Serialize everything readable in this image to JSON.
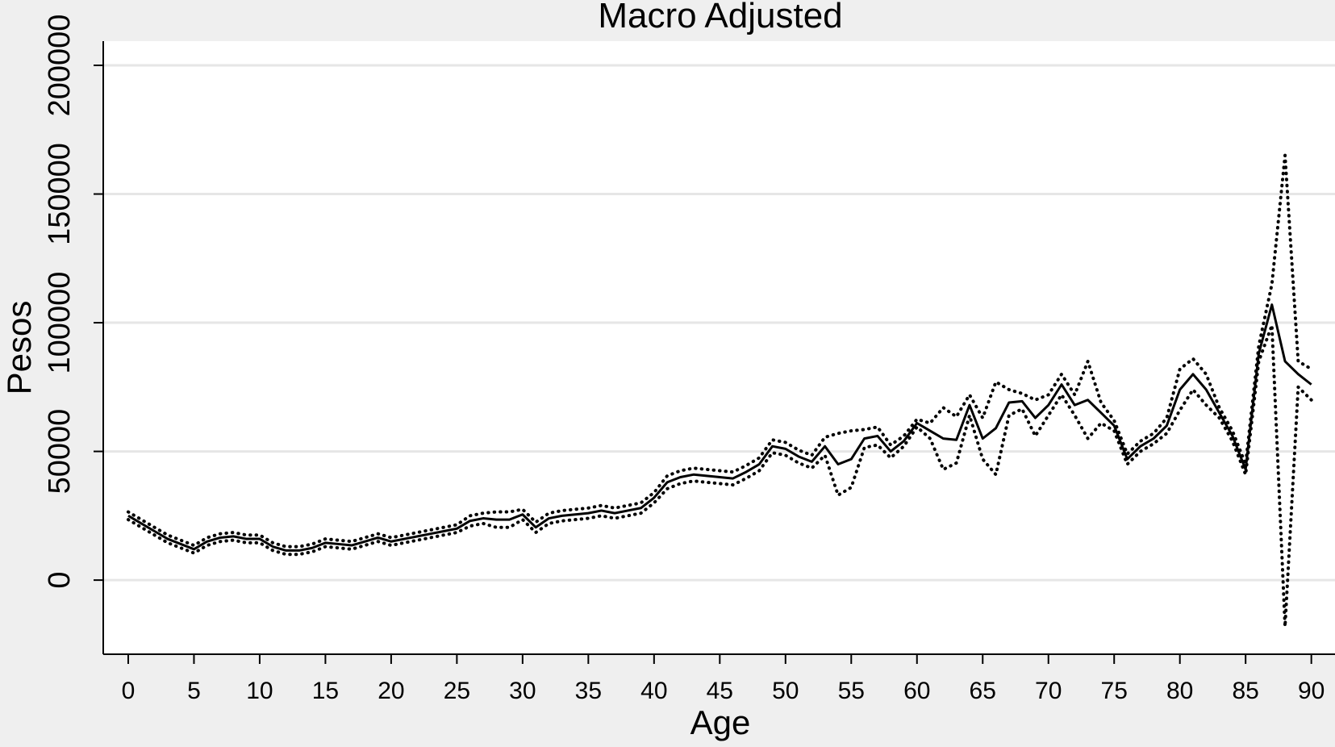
{
  "chart_data": {
    "type": "line",
    "title": "Macro Adjusted",
    "x_label": "Age",
    "y_label": "Pesos",
    "x": [
      0,
      1,
      2,
      3,
      4,
      5,
      6,
      7,
      8,
      9,
      10,
      11,
      12,
      13,
      14,
      15,
      16,
      17,
      18,
      19,
      20,
      21,
      22,
      23,
      24,
      25,
      26,
      27,
      28,
      29,
      30,
      31,
      32,
      33,
      34,
      35,
      36,
      37,
      38,
      39,
      40,
      41,
      42,
      43,
      44,
      45,
      46,
      47,
      48,
      49,
      50,
      51,
      52,
      53,
      54,
      55,
      56,
      57,
      58,
      59,
      60,
      61,
      62,
      63,
      64,
      65,
      66,
      67,
      68,
      69,
      70,
      71,
      72,
      73,
      74,
      75,
      76,
      77,
      78,
      79,
      80,
      81,
      82,
      83,
      84,
      85,
      86,
      87,
      88,
      89,
      90
    ],
    "series": [
      {
        "color": "#000000",
        "style": "solid",
        "values": [
          25000,
          22000,
          19000,
          16000,
          14000,
          12000,
          15000,
          16500,
          17000,
          16000,
          16000,
          13000,
          11500,
          11500,
          12500,
          14500,
          14000,
          13500,
          15000,
          16500,
          15000,
          16000,
          17000,
          18000,
          19000,
          20000,
          23000,
          24000,
          23500,
          23500,
          25500,
          20500,
          24000,
          25000,
          25500,
          26000,
          27000,
          26000,
          27000,
          28000,
          32000,
          38000,
          40000,
          41000,
          40500,
          40000,
          39500,
          42000,
          45000,
          52000,
          51000,
          48000,
          46000,
          52000,
          45000,
          47000,
          55000,
          56000,
          50000,
          54000,
          61000,
          58000,
          55000,
          54500,
          68000,
          55000,
          59000,
          69000,
          69500,
          63000,
          68000,
          76000,
          68000,
          70000,
          65000,
          60000,
          47000,
          52000,
          55000,
          60000,
          74000,
          80000,
          74000,
          65000,
          56000,
          43000,
          88000,
          107000,
          85000,
          80000,
          76000
        ]
      },
      {
        "color": "#000000",
        "style": "dotted",
        "values": [
          26500,
          23500,
          20500,
          17500,
          15500,
          13500,
          16500,
          18000,
          18500,
          17500,
          17500,
          14500,
          13000,
          13000,
          14000,
          16000,
          15500,
          15000,
          16500,
          18000,
          16500,
          17500,
          18500,
          19500,
          20500,
          21500,
          25000,
          26000,
          26500,
          26500,
          27500,
          22500,
          26000,
          27000,
          27500,
          28000,
          29000,
          28000,
          29000,
          30000,
          34000,
          40500,
          42500,
          43500,
          43000,
          42500,
          42000,
          44500,
          47500,
          54500,
          53500,
          50500,
          48500,
          55500,
          57000,
          58000,
          58500,
          59500,
          52500,
          56000,
          62500,
          61000,
          67000,
          63500,
          72000,
          63000,
          77000,
          74000,
          72500,
          70000,
          72000,
          80000,
          72000,
          85000,
          69000,
          62000,
          49000,
          54000,
          57000,
          63000,
          82000,
          86000,
          80000,
          67000,
          58000,
          45000,
          91000,
          115000,
          165000,
          85000,
          82000
        ]
      },
      {
        "color": "#000000",
        "style": "dotted",
        "values": [
          23500,
          20500,
          17500,
          14500,
          12500,
          10500,
          13500,
          15000,
          15500,
          14500,
          14500,
          11500,
          10000,
          10000,
          11000,
          13000,
          12500,
          12000,
          13500,
          15000,
          13500,
          14500,
          15500,
          16500,
          17500,
          18500,
          21000,
          22000,
          20500,
          20500,
          23500,
          18500,
          22000,
          23000,
          23500,
          24000,
          25000,
          24000,
          25000,
          26000,
          30000,
          35500,
          37500,
          38500,
          38000,
          37500,
          37000,
          39500,
          42500,
          49500,
          48500,
          45500,
          43500,
          48500,
          33000,
          36000,
          51500,
          52500,
          47500,
          52000,
          59500,
          55000,
          43000,
          45500,
          64000,
          47000,
          41000,
          64000,
          66500,
          56000,
          64000,
          72000,
          64000,
          55000,
          61000,
          58000,
          45000,
          50000,
          53000,
          57000,
          66000,
          74000,
          68000,
          63000,
          54000,
          41000,
          85000,
          99000,
          -18000,
          75000,
          70000
        ]
      }
    ],
    "xlim": [
      -1.9,
      91.8
    ],
    "ylim": [
      -28800,
      209400
    ],
    "xticks": [
      0,
      5,
      10,
      15,
      20,
      25,
      30,
      35,
      40,
      45,
      50,
      55,
      60,
      65,
      70,
      75,
      80,
      85,
      90
    ],
    "yticks": [
      0,
      50000,
      100000,
      150000,
      200000
    ],
    "grid": true
  }
}
